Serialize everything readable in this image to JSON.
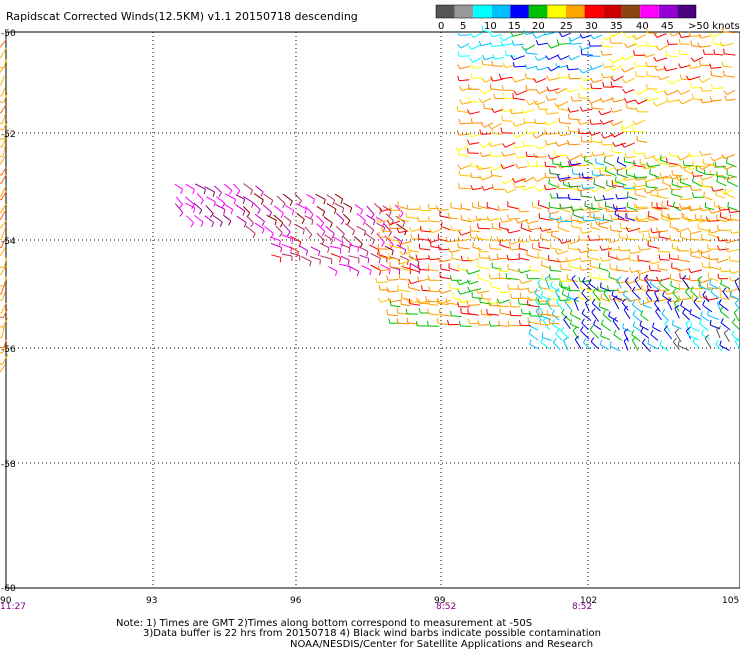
{
  "title": "Rapidscat Corrected Winds(12.5KM) v1.1 20150718 descending",
  "scale": {
    "colors": [
      "#555555",
      "#999999",
      "#00ffff",
      "#00bfff",
      "#0000ff",
      "#00c000",
      "#ffff00",
      "#ffa500",
      "#ff0000",
      "#cc0000",
      "#8b4513",
      "#ff00ff",
      "#9400d3",
      "#4b0082"
    ],
    "labels": [
      "0",
      "5",
      "10",
      "15",
      "20",
      "25",
      "30",
      "35",
      "40",
      "45",
      ">50 knots"
    ]
  },
  "axes": {
    "lat_labels": [
      "-50",
      "-52",
      "-54",
      "-56",
      "-58",
      "-60"
    ],
    "lon_labels": [
      "90",
      "93",
      "96",
      "99",
      "102",
      "105"
    ],
    "time_labels": [
      {
        "lon": "90",
        "text": "11:27"
      },
      {
        "lon": "99",
        "text": "8:52"
      },
      {
        "lon": "102",
        "text": "8:52"
      }
    ]
  },
  "notes": [
    "Note: 1) Times are GMT 2)Times along bottom correspond to measurement at -50S",
    "3)Data buffer is 22 hrs from 20150718 4) Black wind barbs indicate possible contamination",
    "NOAA/NESDIS/Center for Satellite Applications and Research"
  ]
}
